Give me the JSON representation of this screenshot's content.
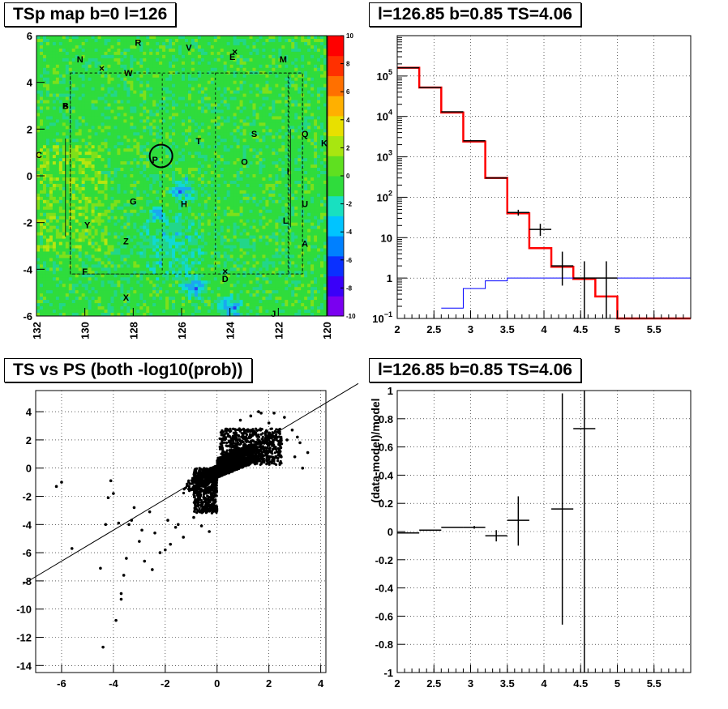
{
  "panels": {
    "map_title": "TSp map b=0 l=126",
    "spec_title": "l=126.85 b=0.85 TS=4.06",
    "scatter_title": "TS vs PS (both -log10(prob))",
    "resid_title": "l=126.85 b=0.85 TS=4.06"
  },
  "chart_data": [
    {
      "type": "heatmap",
      "title": "TSp map b=0 l=126",
      "xlim": [
        132,
        120
      ],
      "ylim": [
        -6,
        6
      ],
      "xticks": [
        "132",
        "130",
        "128",
        "126",
        "124",
        "122",
        "120"
      ],
      "yticks": [
        "6",
        "4",
        "2",
        "0",
        "-2",
        "-4",
        "-6"
      ],
      "colorbar": {
        "range": [
          -10,
          10
        ],
        "ticks": [
          "10",
          "8",
          "6",
          "4",
          "2",
          "0",
          "-2",
          "-4",
          "-6",
          "-8",
          "-10"
        ]
      },
      "source_labels": [
        {
          "t": "R",
          "l": 127.8,
          "b": 5.7
        },
        {
          "t": "V",
          "l": 125.7,
          "b": 5.5
        },
        {
          "t": "E",
          "l": 123.9,
          "b": 5.1
        },
        {
          "t": "N",
          "l": 130.2,
          "b": 5.0
        },
        {
          "t": "M",
          "l": 121.8,
          "b": 5.0
        },
        {
          "t": "W",
          "l": 128.2,
          "b": 4.4
        },
        {
          "t": "B",
          "l": 130.8,
          "b": 3.0
        },
        {
          "t": "T",
          "l": 125.3,
          "b": 1.5
        },
        {
          "t": "S",
          "l": 123.0,
          "b": 1.8
        },
        {
          "t": "Q",
          "l": 120.9,
          "b": 1.8
        },
        {
          "t": "K",
          "l": 120.1,
          "b": 1.4
        },
        {
          "t": "C",
          "l": 131.9,
          "b": 0.9
        },
        {
          "t": "P",
          "l": 127.1,
          "b": 0.7
        },
        {
          "t": "O",
          "l": 123.4,
          "b": 0.6
        },
        {
          "t": "I",
          "l": 121.6,
          "b": 0.2
        },
        {
          "t": "G",
          "l": 128.0,
          "b": -1.1
        },
        {
          "t": "H",
          "l": 125.9,
          "b": -1.2
        },
        {
          "t": "U",
          "l": 120.9,
          "b": -1.2
        },
        {
          "t": "L",
          "l": 121.7,
          "b": -1.9
        },
        {
          "t": "Y",
          "l": 129.9,
          "b": -2.1
        },
        {
          "t": "Z",
          "l": 128.3,
          "b": -2.8
        },
        {
          "t": "A",
          "l": 120.9,
          "b": -2.9
        },
        {
          "t": "F",
          "l": 130.0,
          "b": -4.1
        },
        {
          "t": "D",
          "l": 124.2,
          "b": -4.4
        },
        {
          "t": "X",
          "l": 128.3,
          "b": -5.2
        },
        {
          "t": "J",
          "l": 122.2,
          "b": -5.9
        }
      ],
      "cross_marks": [
        {
          "l": 130.8,
          "b": 3.0
        },
        {
          "l": 129.3,
          "b": 4.6
        },
        {
          "l": 123.8,
          "b": 5.3
        },
        {
          "l": 124.2,
          "b": -4.1
        }
      ],
      "highlight_circle": {
        "l": 126.85,
        "b": 0.85
      }
    },
    {
      "type": "line",
      "title": "l=126.85 b=0.85 TS=4.06",
      "xlim": [
        2,
        6
      ],
      "ylim": [
        0.1,
        1000000
      ],
      "ylog": true,
      "grid": true,
      "xticks": [
        "2",
        "2.5",
        "3",
        "3.5",
        "4",
        "4.5",
        "5",
        "5.5"
      ],
      "yticks": [
        {
          "base": "10",
          "exp": "5",
          "v": 100000
        },
        {
          "base": "10",
          "exp": "4",
          "v": 10000
        },
        {
          "base": "10",
          "exp": "3",
          "v": 1000
        },
        {
          "base": "10",
          "exp": "2",
          "v": 100
        },
        {
          "base": "10",
          "exp": "",
          "v": 10
        },
        {
          "base": "1",
          "exp": "",
          "v": 1
        },
        {
          "base": "10",
          "exp": "−1",
          "v": 0.1
        }
      ],
      "series": [
        {
          "color": "#ff0000",
          "edges": [
            2,
            2.3,
            2.6,
            2.9,
            3.2,
            3.5,
            3.8,
            4.1,
            4.4,
            4.7,
            5.0,
            6.0
          ],
          "values": [
            160000,
            52000,
            12500,
            2400,
            300,
            40,
            5.5,
            1.9,
            0.95,
            0.35,
            0.1
          ]
        },
        {
          "color": "#0000ff",
          "edges": [
            2.6,
            2.9,
            3.2,
            3.5,
            3.8,
            6.0
          ],
          "values": [
            0.18,
            0.55,
            0.85,
            1.0,
            1.0
          ]
        },
        {
          "color": "#000000",
          "points": [
            {
              "x": 2.15,
              "y": 160000,
              "xe": 0.15,
              "lo": 160000,
              "hi": 160000
            },
            {
              "x": 2.45,
              "y": 52000,
              "xe": 0.15,
              "lo": 52000,
              "hi": 52000
            },
            {
              "x": 2.75,
              "y": 13000,
              "xe": 0.15,
              "lo": 13000,
              "hi": 13000
            },
            {
              "x": 3.05,
              "y": 2500,
              "xe": 0.15,
              "lo": 2500,
              "hi": 2500
            },
            {
              "x": 3.35,
              "y": 300,
              "xe": 0.15,
              "lo": 300,
              "hi": 300
            },
            {
              "x": 3.65,
              "y": 42,
              "xe": 0.15,
              "lo": 35,
              "hi": 49
            },
            {
              "x": 3.95,
              "y": 16,
              "xe": 0.15,
              "lo": 11,
              "hi": 22
            },
            {
              "x": 4.25,
              "y": 2,
              "xe": 0.15,
              "lo": 0.65,
              "hi": 4.5
            },
            {
              "x": 4.55,
              "y": 1,
              "xe": 0.15,
              "lo": 0.1,
              "hi": 2.6
            },
            {
              "x": 4.85,
              "y": 1,
              "xe": 0.15,
              "lo": 0.1,
              "hi": 2.6
            }
          ]
        }
      ]
    },
    {
      "type": "scatter",
      "title": "TS vs PS (both -log10(prob))",
      "xlim": [
        -7,
        4.2
      ],
      "ylim": [
        -14.5,
        5.5
      ],
      "grid": true,
      "xticks": [
        "-6",
        "-4",
        "-2",
        "0",
        "2",
        "4"
      ],
      "yticks": [
        "4",
        "2",
        "0",
        "-2",
        "-4",
        "-6",
        "-8",
        "-10",
        "-12",
        "-14"
      ],
      "fit_line": {
        "slope": 1.1,
        "intercept": 0
      },
      "outliers": [
        [
          -6.2,
          -1.3
        ],
        [
          -6.0,
          -1.0
        ],
        [
          -5.6,
          -5.7
        ],
        [
          -4.5,
          -7.1
        ],
        [
          -4.3,
          -4.0
        ],
        [
          -4.1,
          -0.9
        ],
        [
          -4.0,
          -1.8
        ],
        [
          -3.9,
          -10.8
        ],
        [
          -3.7,
          -8.9
        ],
        [
          -3.7,
          -9.3
        ],
        [
          -3.6,
          -7.6
        ],
        [
          -3.5,
          -6.4
        ],
        [
          -3.4,
          -4.0
        ],
        [
          -3.3,
          -3.7
        ],
        [
          -3.0,
          -5.2
        ],
        [
          -2.8,
          -6.6
        ],
        [
          -2.5,
          -7.2
        ],
        [
          -2.4,
          -4.6
        ],
        [
          -2.2,
          -6.0
        ],
        [
          -2.0,
          -5.8
        ],
        [
          -1.8,
          -5.4
        ],
        [
          -1.6,
          -4.2
        ],
        [
          -1.3,
          -4.9
        ],
        [
          -4.4,
          -12.7
        ],
        [
          -3.2,
          -2.8
        ],
        [
          -2.9,
          -4.4
        ],
        [
          -2.6,
          -3.1
        ],
        [
          -1.9,
          -3.7
        ],
        [
          -3.8,
          -3.9
        ],
        [
          -4.2,
          -2.1
        ],
        [
          -1.5,
          -4.0
        ],
        [
          -0.9,
          -3.5
        ],
        [
          -0.3,
          -4.5
        ],
        [
          -0.6,
          -4.1
        ],
        [
          1.7,
          3.9
        ],
        [
          2.6,
          3.6
        ],
        [
          3.1,
          2.2
        ],
        [
          3.3,
          0.0
        ],
        [
          2.9,
          2.7
        ],
        [
          2.0,
          3.2
        ],
        [
          2.2,
          3.9
        ],
        [
          1.6,
          4.0
        ],
        [
          3.5,
          1.1
        ],
        [
          3.0,
          0.8
        ],
        [
          2.7,
          2.0
        ],
        [
          1.3,
          3.7
        ],
        [
          0.9,
          3.4
        ],
        [
          2.4,
          1.3
        ],
        [
          3.2,
          1.8
        ]
      ]
    },
    {
      "type": "scatter",
      "title": "l=126.85 b=0.85 TS=4.06",
      "ylabel": "(data-model)/model",
      "xlim": [
        2,
        6
      ],
      "ylim": [
        -1,
        1
      ],
      "grid": true,
      "xticks": [
        "2",
        "2.5",
        "3",
        "3.5",
        "4",
        "4.5",
        "5",
        "5.5"
      ],
      "yticks": [
        "1",
        "0.8",
        "0.6",
        "0.4",
        "0.2",
        "0",
        "-0.2",
        "-0.4",
        "-0.6",
        "-0.8",
        "-1"
      ],
      "points": [
        {
          "x": 2.15,
          "y": -0.01,
          "xe": 0.15,
          "lo": -0.01,
          "hi": -0.01
        },
        {
          "x": 2.45,
          "y": 0.01,
          "xe": 0.15,
          "lo": 0.01,
          "hi": 0.01
        },
        {
          "x": 2.75,
          "y": 0.03,
          "xe": 0.15,
          "lo": 0.03,
          "hi": 0.03
        },
        {
          "x": 3.05,
          "y": 0.03,
          "xe": 0.15,
          "lo": 0.02,
          "hi": 0.04
        },
        {
          "x": 3.35,
          "y": -0.03,
          "xe": 0.15,
          "lo": -0.07,
          "hi": 0.01
        },
        {
          "x": 3.65,
          "y": 0.08,
          "xe": 0.15,
          "lo": -0.1,
          "hi": 0.25
        },
        {
          "x": 4.25,
          "y": 0.16,
          "xe": 0.15,
          "lo": -0.66,
          "hi": 0.98
        },
        {
          "x": 4.55,
          "y": 0.73,
          "xe": 0.15,
          "lo": -1.0,
          "hi": 1.0
        }
      ]
    }
  ]
}
